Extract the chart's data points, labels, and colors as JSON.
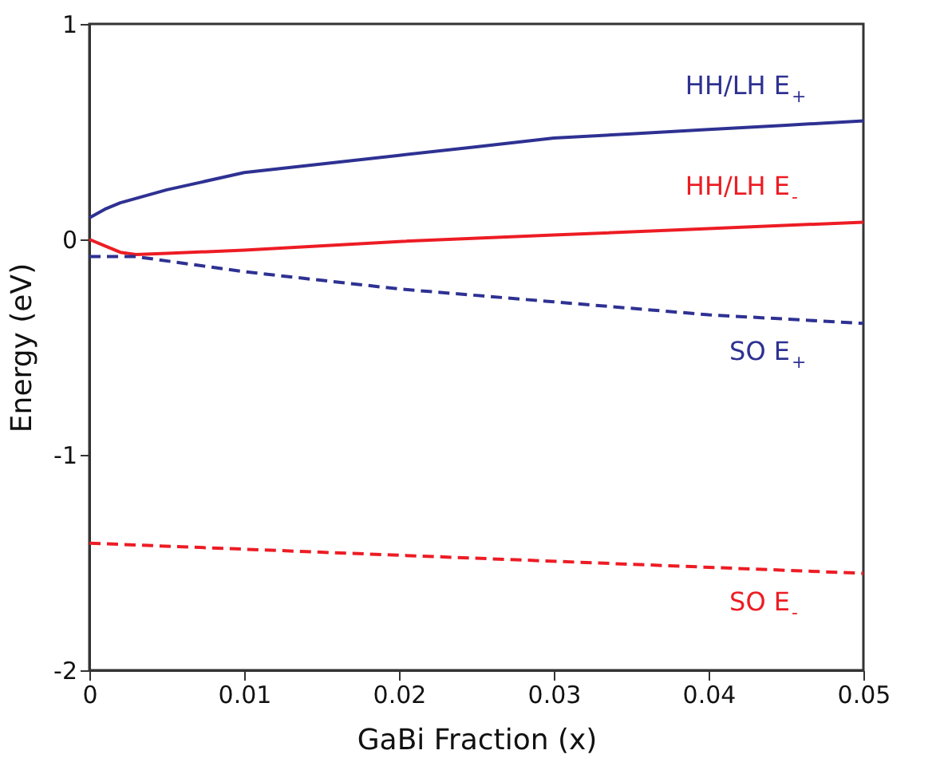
{
  "chart_data": {
    "type": "line",
    "xlabel": "GaBi Fraction (x)",
    "ylabel": "Energy (eV)",
    "xlim": [
      0,
      0.05
    ],
    "ylim": [
      -2,
      1
    ],
    "xticks": [
      0,
      0.01,
      0.02,
      0.03,
      0.04,
      0.05
    ],
    "yticks": [
      -2,
      -1,
      0,
      1
    ],
    "grid": false,
    "line_style": "solid",
    "series": [
      {
        "name": "HH/LH E$_{+}$",
        "color": "#2e3192",
        "x": [
          0,
          0.001,
          0.002,
          0.005,
          0.01,
          0.015,
          0.02,
          0.025,
          0.03,
          0.035,
          0.04,
          0.045,
          0.05
        ],
        "values": [
          0.1,
          0.14,
          0.17,
          0.23,
          0.31,
          0.35,
          0.39,
          0.43,
          0.47,
          0.49,
          0.51,
          0.53,
          0.55
        ]
      },
      {
        "name": "HH/LH E$_{-}$",
        "color": "#ed1c24",
        "x": [
          0,
          0.001,
          0.002,
          0.003,
          0.005,
          0.01,
          0.02,
          0.03,
          0.04,
          0.05
        ],
        "values": [
          0,
          -0.03,
          -0.06,
          -0.07,
          -0.065,
          -0.05,
          -0.01,
          0.02,
          0.05,
          0.08
        ]
      },
      {
        "name": "SO E$_{+}$",
        "color": "#2e3192",
        "line_style": "dashed",
        "x": [
          0,
          0.003,
          0.01,
          0.02,
          0.03,
          0.04,
          0.05
        ],
        "values": [
          -0.08,
          -0.08,
          -0.15,
          -0.23,
          -0.29,
          -0.35,
          -0.39
        ]
      },
      {
        "name": "SO E$_{-}$",
        "color": "#ed1c24",
        "line_style": "dashed",
        "x": [
          0,
          0.05
        ],
        "values": [
          -1.41,
          -1.55
        ]
      }
    ]
  }
}
